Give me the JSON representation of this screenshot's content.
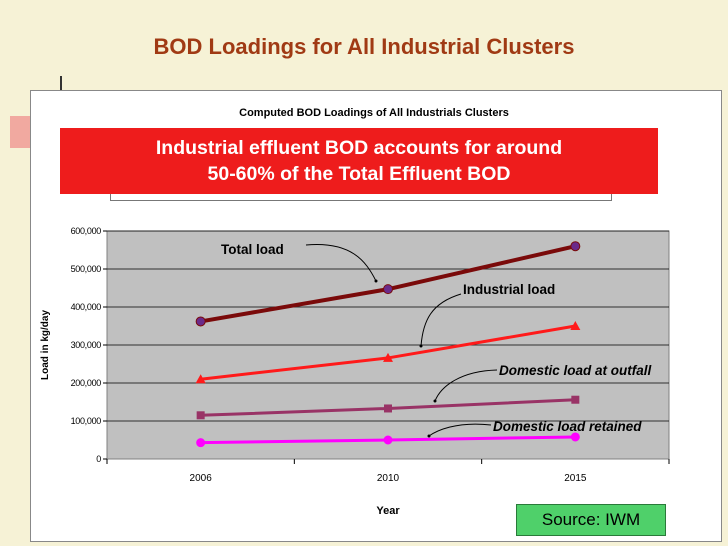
{
  "slide": {
    "title": "BOD Loadings for All Industrial Clusters",
    "title_color": "#a03a14",
    "callout_line1": "Industrial effluent BOD accounts for around",
    "callout_line2": "50-60% of the Total Effluent BOD",
    "source": "Source: IWM"
  },
  "chart_data": {
    "type": "line",
    "title": "Computed BOD Loadings of All Industrials Clusters",
    "xlabel": "Year",
    "ylabel": "Load in kg/day",
    "categories": [
      "2006",
      "2010",
      "2015"
    ],
    "ylim": [
      0,
      600000
    ],
    "yticks": [
      "0",
      "100,000",
      "200,000",
      "300,000",
      "400,000",
      "500,000",
      "600,000"
    ],
    "grid": true,
    "plot_background": "#c0c0c0",
    "series": [
      {
        "name": "Total load",
        "values": [
          362000,
          447000,
          560000
        ],
        "color": "#7a0a0a",
        "marker": "circle"
      },
      {
        "name": "Industrial load",
        "values": [
          210000,
          266000,
          350000
        ],
        "color": "#ff1a1a",
        "marker": "triangle"
      },
      {
        "name": "Domestic load at outfall",
        "values": [
          115000,
          133000,
          156000
        ],
        "color": "#993366",
        "marker": "square"
      },
      {
        "name": "Domestic load retained",
        "values": [
          43000,
          50000,
          58000
        ],
        "color": "#ff00ff",
        "marker": "circle"
      }
    ],
    "annotations": [
      {
        "text": "Total load",
        "style": "bold"
      },
      {
        "text": "Industrial load",
        "style": "bold"
      },
      {
        "text": "Domestic load at outfall",
        "style": "bold-italic"
      },
      {
        "text": "Domestic load retained",
        "style": "bold-italic"
      }
    ]
  }
}
